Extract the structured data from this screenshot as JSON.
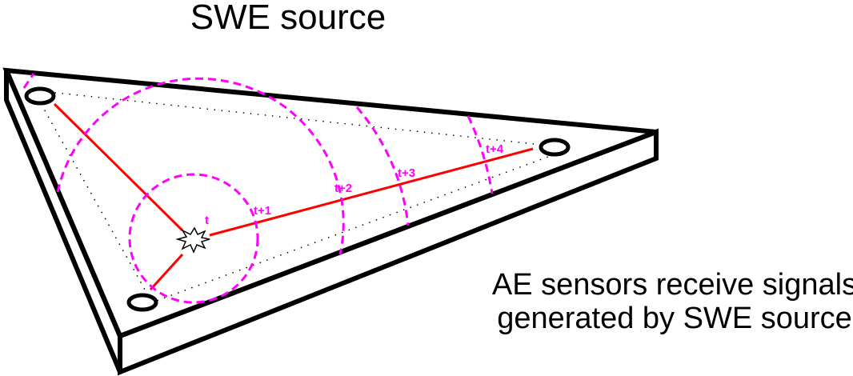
{
  "title": "SWE source",
  "caption": {
    "line1": "AE sensors receive signals",
    "line2": "generated by SWE source"
  },
  "wave_labels": [
    "t",
    "t+1",
    "t+2",
    "t+3",
    "t+4"
  ],
  "colors": {
    "plate_outline": "#000000",
    "signal_path": "#ff0000",
    "wavefront": "#ff00ff",
    "dotted_boundary": "#000000"
  },
  "icons": {
    "source": "starburst-icon",
    "sensor": "ellipse-sensor-icon"
  },
  "sensor_count": 3
}
